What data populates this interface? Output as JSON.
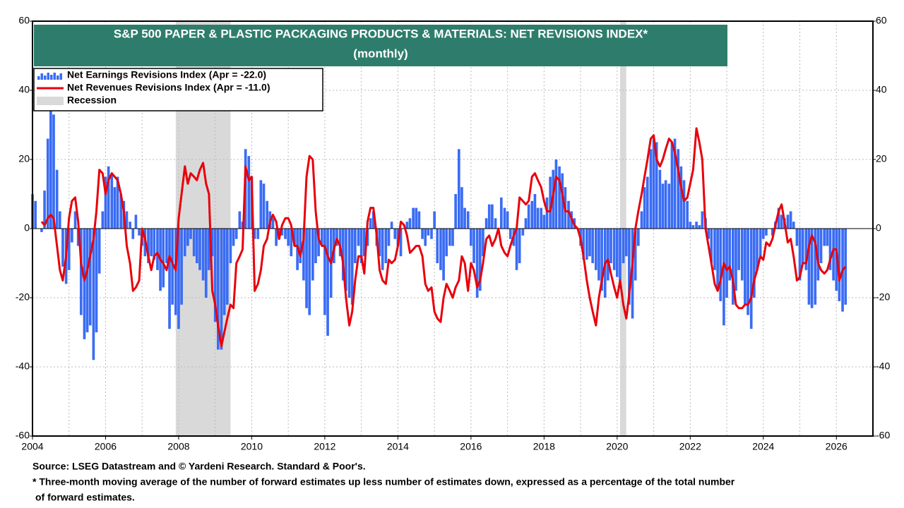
{
  "chart_data": {
    "type": "bar-line",
    "title": "S&P 500 PAPER & PLASTIC PACKAGING PRODUCTS & MATERIALS: NET REVISIONS INDEX*",
    "subtitle": "(monthly)",
    "source": "Source: LSEG Datastream and © Yardeni Research. Standard & Poor's.",
    "footnote": "* Three-month moving average of the number of forward estimates up less number of estimates down, expressed as a percentage of the total number",
    "footnote_cont": "of forward estimates.",
    "recession_label": "Recession",
    "recession_color": "#d9d9d9",
    "recessions": [
      [
        2007.92,
        2009.42
      ],
      [
        2020.08,
        2020.25
      ]
    ],
    "xlim": [
      2004,
      2027
    ],
    "xticks": [
      2004,
      2006,
      2008,
      2010,
      2012,
      2014,
      2016,
      2018,
      2020,
      2022,
      2024,
      2026
    ],
    "ylim": [
      -60,
      60
    ],
    "yticks": [
      -60,
      -40,
      -20,
      0,
      20,
      40,
      60
    ],
    "grid": true,
    "x": [
      2004,
      2004.08,
      2004.17,
      2004.25,
      2004.33,
      2004.42,
      2004.5,
      2004.58,
      2004.67,
      2004.75,
      2004.83,
      2004.92,
      2005,
      2005.08,
      2005.17,
      2005.25,
      2005.33,
      2005.42,
      2005.5,
      2005.58,
      2005.67,
      2005.75,
      2005.83,
      2005.92,
      2006,
      2006.08,
      2006.17,
      2006.25,
      2006.33,
      2006.42,
      2006.5,
      2006.58,
      2006.67,
      2006.75,
      2006.83,
      2006.92,
      2007,
      2007.08,
      2007.17,
      2007.25,
      2007.33,
      2007.42,
      2007.5,
      2007.58,
      2007.67,
      2007.75,
      2007.83,
      2007.92,
      2008,
      2008.08,
      2008.17,
      2008.25,
      2008.33,
      2008.42,
      2008.5,
      2008.58,
      2008.67,
      2008.75,
      2008.83,
      2008.92,
      2009,
      2009.08,
      2009.17,
      2009.25,
      2009.33,
      2009.42,
      2009.5,
      2009.58,
      2009.67,
      2009.75,
      2009.83,
      2009.92,
      2010,
      2010.08,
      2010.17,
      2010.25,
      2010.33,
      2010.42,
      2010.5,
      2010.58,
      2010.67,
      2010.75,
      2010.83,
      2010.92,
      2011,
      2011.08,
      2011.17,
      2011.25,
      2011.33,
      2011.42,
      2011.5,
      2011.58,
      2011.67,
      2011.75,
      2011.83,
      2011.92,
      2012,
      2012.08,
      2012.17,
      2012.25,
      2012.33,
      2012.42,
      2012.5,
      2012.58,
      2012.67,
      2012.75,
      2012.83,
      2012.92,
      2013,
      2013.08,
      2013.17,
      2013.25,
      2013.33,
      2013.42,
      2013.5,
      2013.58,
      2013.67,
      2013.75,
      2013.83,
      2013.92,
      2014,
      2014.08,
      2014.17,
      2014.25,
      2014.33,
      2014.42,
      2014.5,
      2014.58,
      2014.67,
      2014.75,
      2014.83,
      2014.92,
      2015,
      2015.08,
      2015.17,
      2015.25,
      2015.33,
      2015.42,
      2015.5,
      2015.58,
      2015.67,
      2015.75,
      2015.83,
      2015.92,
      2016,
      2016.08,
      2016.17,
      2016.25,
      2016.33,
      2016.42,
      2016.5,
      2016.58,
      2016.67,
      2016.75,
      2016.83,
      2016.92,
      2017,
      2017.08,
      2017.17,
      2017.25,
      2017.33,
      2017.42,
      2017.5,
      2017.58,
      2017.67,
      2017.75,
      2017.83,
      2017.92,
      2018,
      2018.08,
      2018.17,
      2018.25,
      2018.33,
      2018.42,
      2018.5,
      2018.58,
      2018.67,
      2018.75,
      2018.83,
      2018.92,
      2019,
      2019.08,
      2019.17,
      2019.25,
      2019.33,
      2019.42,
      2019.5,
      2019.58,
      2019.67,
      2019.75,
      2019.83,
      2019.92,
      2020,
      2020.08,
      2020.17,
      2020.25,
      2020.33,
      2020.42,
      2020.5,
      2020.58,
      2020.67,
      2020.75,
      2020.83,
      2020.92,
      2021,
      2021.08,
      2021.17,
      2021.25,
      2021.33,
      2021.42,
      2021.5,
      2021.58,
      2021.67,
      2021.75,
      2021.83,
      2021.92,
      2022,
      2022.08,
      2022.17,
      2022.25,
      2022.33,
      2022.42,
      2022.5,
      2022.58,
      2022.67,
      2022.75,
      2022.83,
      2022.92,
      2023,
      2023.08,
      2023.17,
      2023.25,
      2023.33,
      2023.42,
      2023.5,
      2023.58,
      2023.67,
      2023.75,
      2023.83,
      2023.92,
      2024,
      2024.08,
      2024.17,
      2024.25,
      2024.33,
      2024.42,
      2024.5,
      2024.58,
      2024.67,
      2024.75,
      2024.83,
      2024.92,
      2025,
      2025.08,
      2025.17,
      2025.25,
      2025.33,
      2025.42,
      2025.5,
      2025.58,
      2025.67,
      2025.75,
      2025.83,
      2025.92,
      2026,
      2026.08,
      2026.17,
      2026.25
    ],
    "series": [
      {
        "name": "Net Earnings Revisions Index (Apr  = -22.0)",
        "color": "#3a6cf4",
        "kind": "bar",
        "values": [
          10,
          8,
          0,
          -1,
          11,
          26,
          35,
          33,
          17,
          5,
          -11,
          -16,
          -12,
          -4,
          5,
          -5,
          -25,
          -32,
          -30,
          -28,
          -38,
          -30,
          -13,
          5,
          15,
          18,
          16,
          12,
          15,
          10,
          8,
          5,
          2,
          -3,
          4,
          -2,
          -5,
          -8,
          -10,
          -8,
          -9,
          -12,
          -18,
          -17,
          -10,
          -29,
          -22,
          -25,
          -29,
          -22,
          -8,
          -5,
          -3,
          -8,
          -10,
          -12,
          -15,
          -20,
          -12,
          -8,
          -27,
          -35,
          -35,
          -25,
          -22,
          -10,
          -5,
          -3,
          5,
          2,
          23,
          21,
          15,
          -3,
          -3,
          14,
          13,
          8,
          5,
          3,
          -5,
          -3,
          -2,
          -3,
          -5,
          -8,
          -5,
          -12,
          -10,
          -15,
          -23,
          -25,
          -15,
          -10,
          -8,
          -5,
          -25,
          -31,
          -20,
          -10,
          -5,
          -8,
          -15,
          -18,
          -20,
          -22,
          -10,
          -5,
          -10,
          -8,
          -5,
          3,
          5,
          -5,
          -8,
          -12,
          -10,
          -5,
          2,
          -3,
          -5,
          -8,
          0,
          2,
          3,
          6,
          6,
          5,
          -3,
          -5,
          -2,
          -3,
          5,
          -10,
          -12,
          -15,
          -8,
          -5,
          -5,
          10,
          23,
          12,
          6,
          5,
          -5,
          -10,
          -20,
          -18,
          -8,
          3,
          7,
          7,
          3,
          0,
          9,
          6,
          5,
          -3,
          -5,
          -12,
          -10,
          -2,
          3,
          7,
          8,
          10,
          6,
          6,
          4,
          9,
          15,
          17,
          20,
          18,
          16,
          12,
          8,
          5,
          3,
          0,
          -5,
          -9,
          -9,
          -8,
          -10,
          -12,
          -15,
          -18,
          -20,
          -15,
          -10,
          -12,
          -14,
          -15,
          -10,
          -8,
          -22,
          -26,
          -15,
          -5,
          5,
          12,
          15,
          23,
          26,
          25,
          17,
          13,
          14,
          13,
          25,
          26,
          23,
          18,
          14,
          8,
          2,
          1,
          2,
          1,
          5,
          3,
          -3,
          -10,
          -12,
          -18,
          -21,
          -28,
          -20,
          -15,
          -22,
          -18,
          -12,
          -15,
          -22,
          -25,
          -29,
          -20,
          -12,
          -8,
          -3,
          -2,
          0,
          -2,
          2,
          6,
          4,
          3,
          4,
          5,
          2,
          -5,
          -15,
          -10,
          -12,
          -22,
          -23,
          -22,
          -15,
          -10,
          -5,
          -5,
          -12,
          -15,
          -18,
          -21,
          -24,
          -22
        ]
      },
      {
        "name": "Net Revenues Revisions Index (Apr  = -11.0)",
        "color": "#e8000b",
        "kind": "line",
        "values": [
          null,
          null,
          null,
          2,
          1,
          3,
          4,
          3,
          -5,
          -12,
          -15,
          -8,
          3,
          8,
          9,
          2,
          -10,
          -15,
          -12,
          -8,
          -3,
          5,
          17,
          16,
          10,
          14,
          16,
          15,
          14,
          10,
          5,
          -5,
          -10,
          -18,
          -17,
          -15,
          0,
          -3,
          -8,
          -12,
          -8,
          -7,
          -9,
          -10,
          -12,
          -8,
          -10,
          -12,
          3,
          10,
          18,
          13,
          16,
          15,
          14,
          17,
          19,
          13,
          10,
          -18,
          -22,
          -28,
          -34,
          -30,
          -26,
          -22,
          -23,
          -10,
          -8,
          -6,
          18,
          14,
          15,
          -18,
          -16,
          -12,
          -5,
          -3,
          2,
          4,
          2,
          -3,
          1,
          3,
          3,
          1,
          -5,
          -5,
          -8,
          -3,
          15,
          21,
          20,
          5,
          -3,
          -5,
          -5,
          -8,
          -10,
          -6,
          -3,
          -5,
          -10,
          -20,
          -28,
          -24,
          -15,
          -8,
          -8,
          -13,
          2,
          6,
          6,
          -2,
          -12,
          -15,
          -16,
          -9,
          -10,
          -9,
          -5,
          2,
          1,
          -2,
          -7,
          -6,
          -5,
          -5,
          -8,
          -16,
          -18,
          -17,
          -24,
          -26,
          -27,
          -20,
          -16,
          -18,
          -20,
          -17,
          -15,
          -8,
          -10,
          -18,
          -10,
          -12,
          -17,
          -15,
          -10,
          -3,
          -2,
          -5,
          -3,
          0,
          -5,
          -7,
          -8,
          -5,
          -2,
          0,
          9,
          8,
          7,
          8,
          15,
          16,
          14,
          12,
          8,
          5,
          5,
          10,
          15,
          14,
          10,
          5,
          5,
          3,
          1,
          0,
          -3,
          -8,
          -15,
          -20,
          -24,
          -28,
          -20,
          -15,
          -10,
          -9,
          -13,
          -17,
          -20,
          -15,
          -22,
          -26,
          -19,
          -10,
          0,
          5,
          10,
          15,
          20,
          26,
          27,
          20,
          18,
          20,
          23,
          26,
          25,
          22,
          17,
          12,
          8,
          9,
          13,
          17,
          29,
          25,
          20,
          0,
          -5,
          -10,
          -16,
          -18,
          -15,
          -10,
          -12,
          -11,
          -15,
          -22,
          -23,
          -23,
          -22,
          -22,
          -20,
          -15,
          -12,
          -8,
          -9,
          -4,
          -5,
          -3,
          1,
          5,
          7,
          2,
          -4,
          -3,
          -8,
          -15,
          -14,
          -10,
          -10,
          -5,
          -2,
          -4,
          -10,
          -12,
          -13,
          -12,
          -9,
          -6,
          -6,
          -15,
          -12,
          -11
        ]
      }
    ]
  }
}
